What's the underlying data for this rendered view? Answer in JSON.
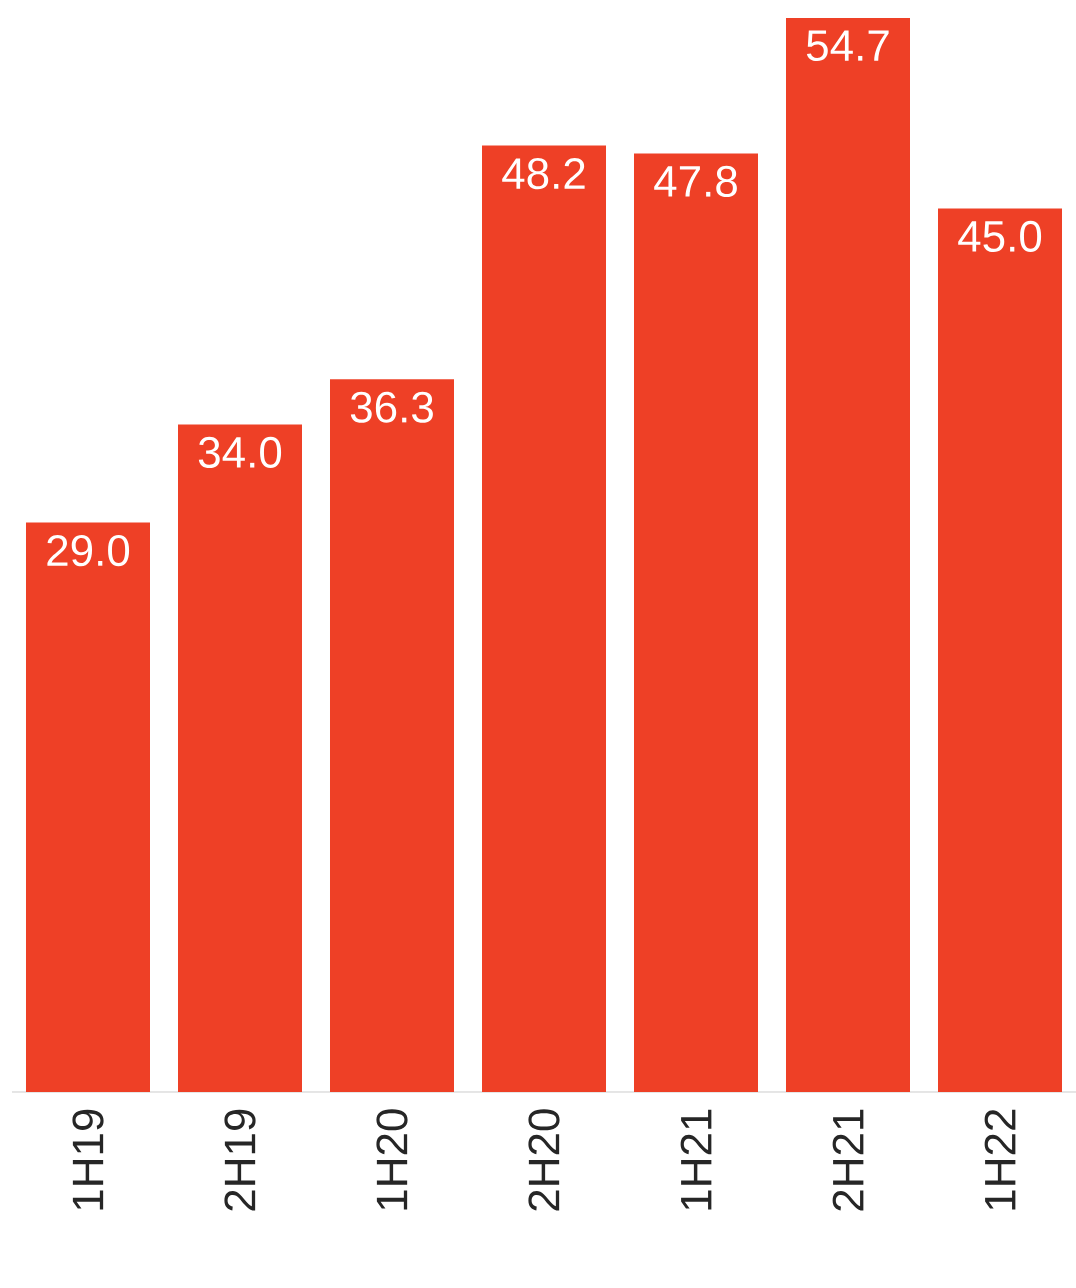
{
  "chart_data": {
    "type": "bar",
    "categories": [
      "1H19",
      "2H19",
      "1H20",
      "2H20",
      "1H21",
      "2H21",
      "1H22"
    ],
    "values": [
      29.0,
      34.0,
      36.3,
      48.2,
      47.8,
      54.7,
      45.0
    ],
    "value_labels": [
      "29.0",
      "34.0",
      "36.3",
      "48.2",
      "47.8",
      "54.7",
      "45.0"
    ],
    "color": "#ee4026"
  }
}
